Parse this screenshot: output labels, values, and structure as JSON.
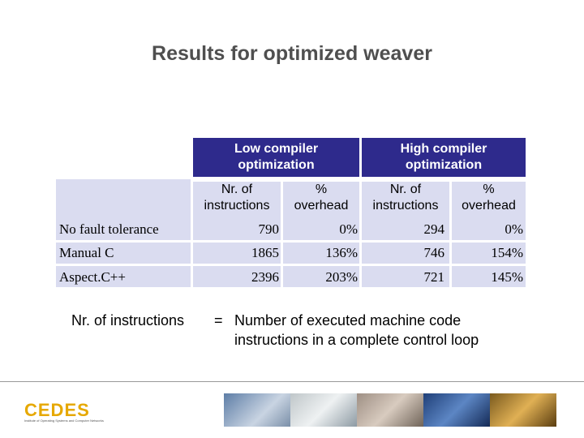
{
  "title": "Results for optimized weaver",
  "table": {
    "group_headers": [
      "Low compiler optimization",
      "High compiler optimization"
    ],
    "sub_headers": [
      {
        "line1": "Nr. of",
        "line2": "instructions"
      },
      {
        "line1": "%",
        "line2": "overhead"
      },
      {
        "line1": "Nr. of",
        "line2": "instructions"
      },
      {
        "line1": "%",
        "line2": "overhead"
      }
    ],
    "rows": [
      {
        "label": "No fault tolerance",
        "values": [
          "790",
          "0%",
          "294",
          "0%"
        ]
      },
      {
        "label": "Manual C",
        "values": [
          "1865",
          "136%",
          "746",
          "154%"
        ]
      },
      {
        "label": "Aspect.C++",
        "values": [
          "2396",
          "203%",
          "721",
          "145%"
        ]
      }
    ]
  },
  "note": {
    "term": "Nr. of instructions",
    "equals": "=",
    "definition_line1": "Number of executed machine code",
    "definition_line2": "instructions in a complete control loop"
  },
  "footer": {
    "logo": "CEDES",
    "logo_tagline": "Institute of Operating Systems and Computer Networks"
  },
  "colors": {
    "header": "#2e2a8c",
    "row": "#dadcf0",
    "title": "#4f4f4f",
    "logo": "#e6a800"
  }
}
